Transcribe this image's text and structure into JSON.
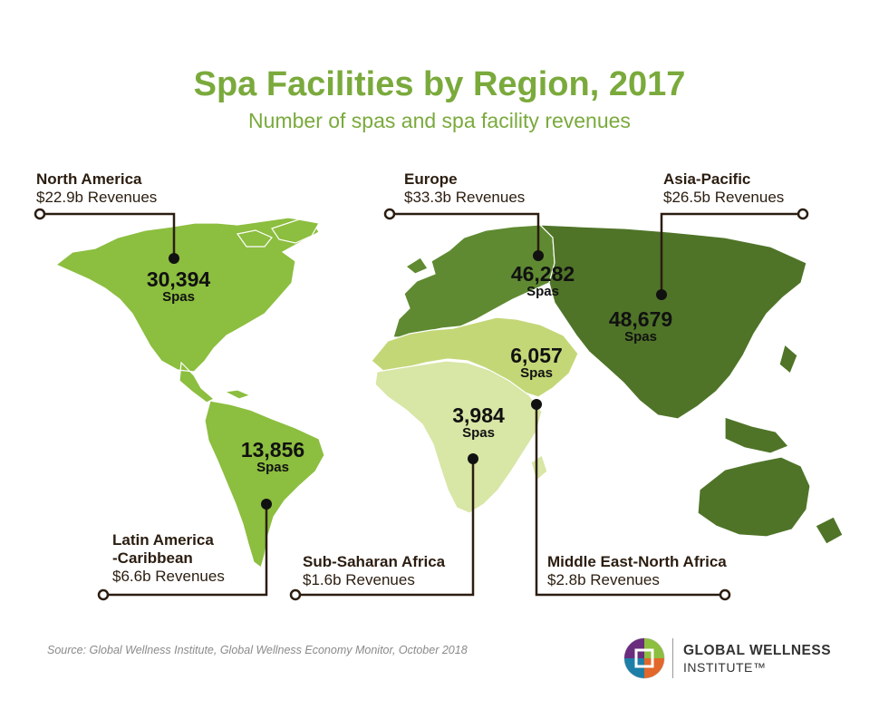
{
  "title": "Spa Facilities by Region, 2017",
  "subtitle": "Number of spas and spa facility revenues",
  "colors": {
    "north_america": "#8cbe3f",
    "latin_america": "#8cbe3f",
    "europe": "#5f8a31",
    "asia_pacific": "#4f7428",
    "mena": "#c3d777",
    "sub_saharan_africa": "#d8e6a6",
    "title": "#7aaa3c",
    "callout": "#2b1d10"
  },
  "regions": [
    {
      "key": "north_america",
      "name": "North America",
      "revenue": "$22.9b Revenues",
      "spas": "30,394",
      "unit": "Spas"
    },
    {
      "key": "europe",
      "name": "Europe",
      "revenue": "$33.3b Revenues",
      "spas": "46,282",
      "unit": "Spas"
    },
    {
      "key": "asia_pacific",
      "name": "Asia-Pacific",
      "revenue": "$26.5b Revenues",
      "spas": "48,679",
      "unit": "Spas"
    },
    {
      "key": "mena",
      "name": "Middle East-North Africa",
      "revenue": "$2.8b Revenues",
      "spas": "6,057",
      "unit": "Spas"
    },
    {
      "key": "sub_saharan_africa",
      "name": "Sub-Saharan Africa",
      "revenue": "$1.6b Revenues",
      "spas": "3,984",
      "unit": "Spas"
    },
    {
      "key": "latin_america",
      "name_line1": "Latin America",
      "name_line2": "-Caribbean",
      "revenue": "$6.6b Revenues",
      "spas": "13,856",
      "unit": "Spas"
    }
  ],
  "source": "Source: Global Wellness Institute, Global Wellness Economy Monitor, October 2018",
  "logo": {
    "line1": "GLOBAL WELLNESS",
    "line2": "INSTITUTE™"
  }
}
